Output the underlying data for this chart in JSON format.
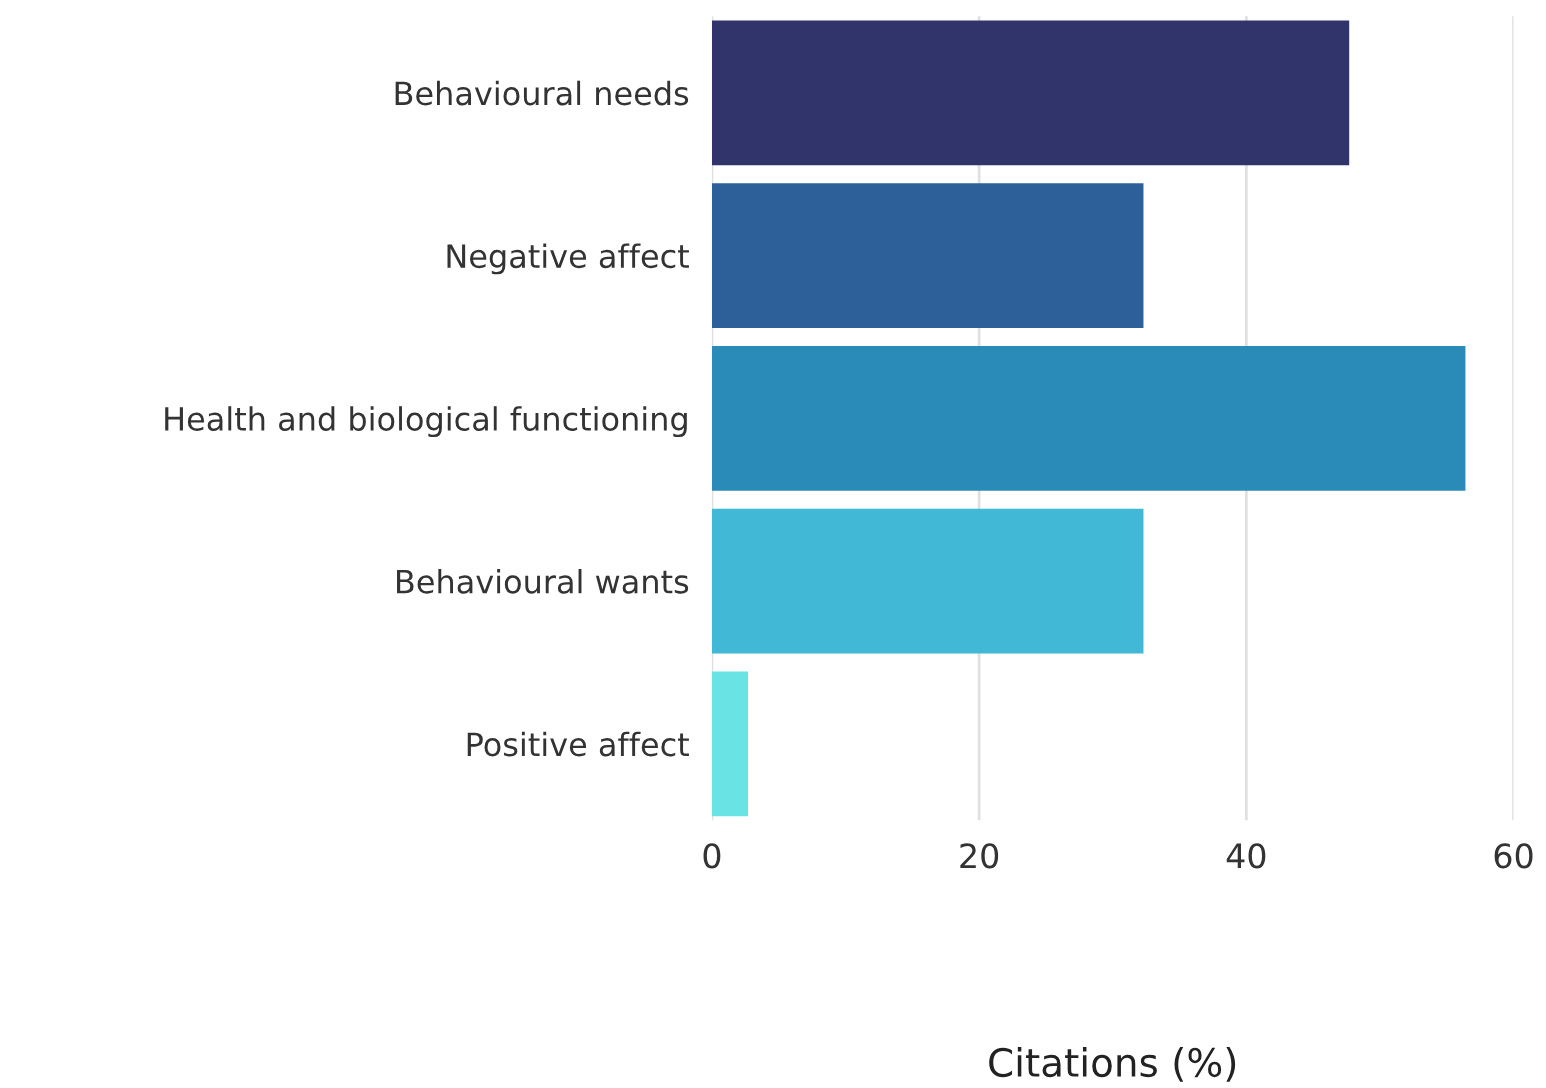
{
  "chart_data": {
    "type": "bar",
    "orientation": "horizontal",
    "xlabel": "Citations (%)",
    "categories": [
      "Behavioural needs",
      "Negative affect",
      "Health and biological functioning",
      "Behavioural wants",
      "Positive affect"
    ],
    "values": [
      47.7,
      32.3,
      56.4,
      32.3,
      2.7
    ],
    "colors": [
      "#31346b",
      "#2d5f98",
      "#2b8bb8",
      "#40b8d6",
      "#6ae3e5"
    ],
    "xlim": [
      0,
      60
    ],
    "xticks": [
      0,
      20,
      40,
      60
    ],
    "grid": "x"
  }
}
